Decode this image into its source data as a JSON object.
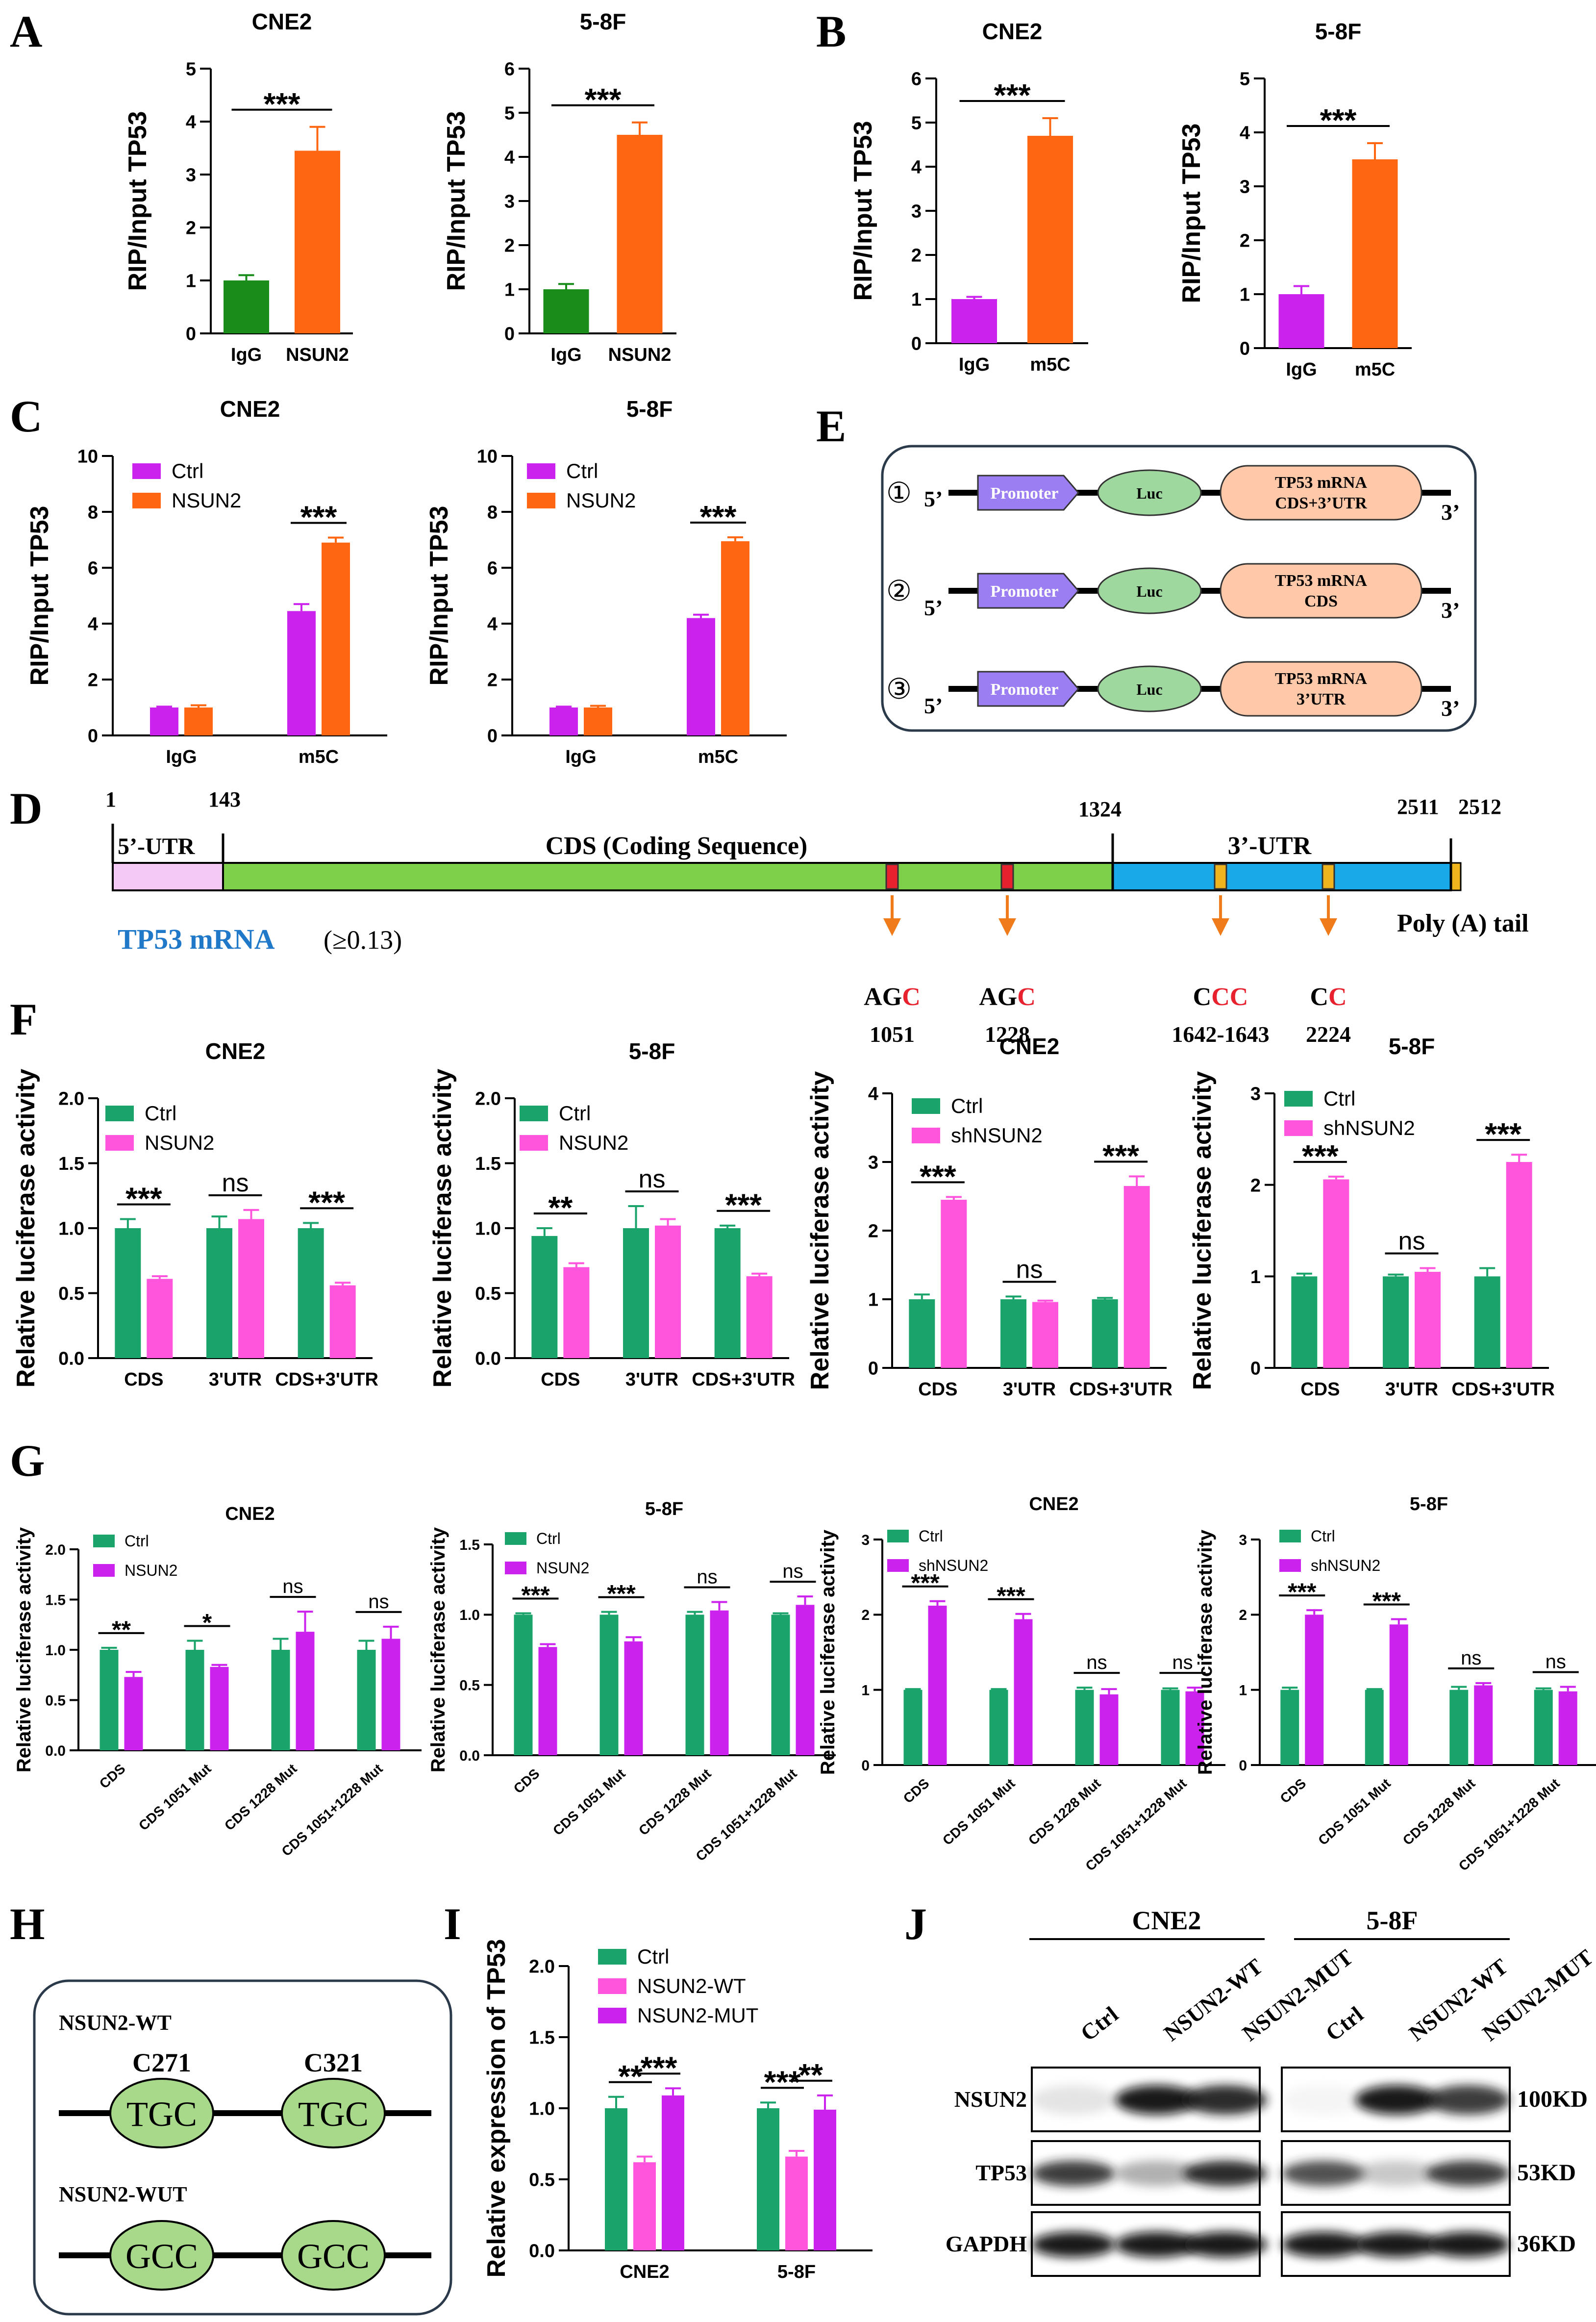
{
  "colors": {
    "green_dark": "#1a8c1a",
    "orange": "#ff6611",
    "magenta": "#cc22ee",
    "teal_green": "#1aa36a",
    "pink": "#ff55dd",
    "purple_box": "#9b7ef2",
    "luc_green": "#9fd89f",
    "peach": "#ffc8a8",
    "utr5": "#f5c9f5",
    "cds": "#7ed04a",
    "utr3": "#1aa9e8",
    "site": "#e8212e",
    "site_yellow": "#f0b41e",
    "arrow": "#f07b1a",
    "mrna_label": "#1f78c8",
    "domain_green": "#a8d98a"
  },
  "chart_data": [
    {
      "panel": "A",
      "title": "CNE2",
      "type": "bar",
      "ylabel": "RIP/Input TP53",
      "ylim": [
        0,
        5
      ],
      "yticks": [
        0,
        1,
        2,
        3,
        4,
        5
      ],
      "categories": [
        "IgG",
        "NSUN2"
      ],
      "values": [
        1.0,
        3.45
      ],
      "errors": [
        0.1,
        0.45
      ],
      "colors": [
        "green_dark",
        "orange"
      ],
      "sig": [
        {
          "from": 0,
          "to": 1,
          "label": "***"
        }
      ]
    },
    {
      "panel": "",
      "title": "5-8F",
      "type": "bar",
      "ylabel": "RIP/Input TP53",
      "ylim": [
        0,
        6
      ],
      "yticks": [
        0,
        1,
        2,
        3,
        4,
        5,
        6
      ],
      "categories": [
        "IgG",
        "NSUN2"
      ],
      "values": [
        1.0,
        4.5
      ],
      "errors": [
        0.12,
        0.28
      ],
      "colors": [
        "green_dark",
        "orange"
      ],
      "sig": [
        {
          "from": 0,
          "to": 1,
          "label": "***"
        }
      ]
    },
    {
      "panel": "B",
      "title": "CNE2",
      "type": "bar",
      "ylabel": "RIP/Input TP53",
      "ylim": [
        0,
        6
      ],
      "yticks": [
        0,
        1,
        2,
        3,
        4,
        5,
        6
      ],
      "categories": [
        "IgG",
        "m5C"
      ],
      "values": [
        1.0,
        4.7
      ],
      "errors": [
        0.05,
        0.4
      ],
      "colors": [
        "magenta",
        "orange"
      ],
      "sig": [
        {
          "from": 0,
          "to": 1,
          "label": "***"
        }
      ]
    },
    {
      "panel": "",
      "title": "5-8F",
      "type": "bar",
      "ylabel": "RIP/Input TP53",
      "ylim": [
        0,
        5
      ],
      "yticks": [
        0,
        1,
        2,
        3,
        4,
        5
      ],
      "categories": [
        "IgG",
        "m5C"
      ],
      "values": [
        1.0,
        3.5
      ],
      "errors": [
        0.15,
        0.3
      ],
      "colors": [
        "magenta",
        "orange"
      ],
      "sig": [
        {
          "from": 0,
          "to": 1,
          "label": "***"
        }
      ]
    },
    {
      "panel": "C",
      "title": "CNE2",
      "type": "grouped_bar",
      "ylabel": "RIP/Input TP53",
      "ylim": [
        0,
        10
      ],
      "yticks": [
        0,
        2,
        4,
        6,
        8,
        10
      ],
      "categories": [
        "IgG",
        "m5C"
      ],
      "series": [
        {
          "name": "Ctrl",
          "values": [
            1.0,
            4.45
          ],
          "errors": [
            0.03,
            0.25
          ],
          "color": "magenta"
        },
        {
          "name": "NSUN2",
          "values": [
            1.0,
            6.9
          ],
          "errors": [
            0.08,
            0.18
          ],
          "color": "orange"
        }
      ],
      "sig": [
        {
          "cat": 1,
          "label": "***"
        }
      ]
    },
    {
      "panel": "",
      "title": "5-8F",
      "type": "grouped_bar",
      "ylabel": "RIP/Input TP53",
      "ylim": [
        0,
        10
      ],
      "yticks": [
        0,
        2,
        4,
        6,
        8,
        10
      ],
      "categories": [
        "IgG",
        "m5C"
      ],
      "series": [
        {
          "name": "Ctrl",
          "values": [
            1.0,
            4.2
          ],
          "errors": [
            0.03,
            0.12
          ],
          "color": "magenta"
        },
        {
          "name": "NSUN2",
          "values": [
            1.0,
            6.95
          ],
          "errors": [
            0.06,
            0.14
          ],
          "color": "orange"
        }
      ],
      "sig": [
        {
          "cat": 1,
          "label": "***"
        }
      ]
    },
    {
      "panel": "F",
      "title": "CNE2",
      "type": "grouped_bar",
      "ylabel": "Relative luciferase activity",
      "ylim": [
        0,
        2.0
      ],
      "yticks": [
        0.0,
        0.5,
        1.0,
        1.5,
        2.0
      ],
      "decimals": 1,
      "categories": [
        "CDS",
        "3'UTR",
        "CDS+3'UTR"
      ],
      "series": [
        {
          "name": "Ctrl",
          "values": [
            1.0,
            1.0,
            1.0
          ],
          "errors": [
            0.07,
            0.09,
            0.04
          ],
          "color": "teal_green"
        },
        {
          "name": "NSUN2",
          "values": [
            0.61,
            1.07,
            0.56
          ],
          "errors": [
            0.02,
            0.07,
            0.02
          ],
          "color": "pink"
        }
      ],
      "sig": [
        {
          "cat": 0,
          "label": "***"
        },
        {
          "cat": 1,
          "label": "ns"
        },
        {
          "cat": 2,
          "label": "***"
        }
      ]
    },
    {
      "panel": "",
      "title": "5-8F",
      "type": "grouped_bar",
      "ylabel": "Relative luciferase activity",
      "ylim": [
        0,
        2.0
      ],
      "yticks": [
        0.0,
        0.5,
        1.0,
        1.5,
        2.0
      ],
      "decimals": 1,
      "categories": [
        "CDS",
        "3'UTR",
        "CDS+3'UTR"
      ],
      "series": [
        {
          "name": "Ctrl",
          "values": [
            0.94,
            1.0,
            1.0
          ],
          "errors": [
            0.06,
            0.17,
            0.02
          ],
          "color": "teal_green"
        },
        {
          "name": "NSUN2",
          "values": [
            0.7,
            1.02,
            0.63
          ],
          "errors": [
            0.03,
            0.05,
            0.02
          ],
          "color": "pink"
        }
      ],
      "sig": [
        {
          "cat": 0,
          "label": "**"
        },
        {
          "cat": 1,
          "label": "ns"
        },
        {
          "cat": 2,
          "label": "***"
        }
      ]
    },
    {
      "panel": "",
      "title": "CNE2",
      "type": "grouped_bar",
      "ylabel": "Relative luciferase activity",
      "ylim": [
        0,
        4
      ],
      "yticks": [
        0,
        1,
        2,
        3,
        4
      ],
      "categories": [
        "CDS",
        "3'UTR",
        "CDS+3'UTR"
      ],
      "series": [
        {
          "name": "Ctrl",
          "values": [
            1.0,
            1.0,
            1.0
          ],
          "errors": [
            0.07,
            0.04,
            0.02
          ],
          "color": "teal_green"
        },
        {
          "name": "shNSUN2",
          "values": [
            2.45,
            0.96,
            2.65
          ],
          "errors": [
            0.04,
            0.02,
            0.14
          ],
          "color": "pink"
        }
      ],
      "sig": [
        {
          "cat": 0,
          "label": "***"
        },
        {
          "cat": 1,
          "label": "ns"
        },
        {
          "cat": 2,
          "label": "***"
        }
      ]
    },
    {
      "panel": "",
      "title": "5-8F",
      "type": "grouped_bar",
      "ylabel": "Relative luciferase activity",
      "ylim": [
        0,
        3
      ],
      "yticks": [
        0,
        1,
        2,
        3
      ],
      "categories": [
        "CDS",
        "3'UTR",
        "CDS+3'UTR"
      ],
      "series": [
        {
          "name": "Ctrl",
          "values": [
            1.0,
            1.0,
            1.0
          ],
          "errors": [
            0.03,
            0.02,
            0.09
          ],
          "color": "teal_green"
        },
        {
          "name": "shNSUN2",
          "values": [
            2.06,
            1.05,
            2.25
          ],
          "errors": [
            0.03,
            0.04,
            0.08
          ],
          "color": "pink"
        }
      ],
      "sig": [
        {
          "cat": 0,
          "label": "***"
        },
        {
          "cat": 1,
          "label": "ns"
        },
        {
          "cat": 2,
          "label": "***"
        }
      ]
    },
    {
      "panel": "G",
      "title": "CNE2",
      "type": "grouped_bar",
      "rotate_x": true,
      "ylabel": "Relative luciferase activity",
      "ylim": [
        0,
        2.0
      ],
      "yticks": [
        0.0,
        0.5,
        1.0,
        1.5,
        2.0
      ],
      "decimals": 1,
      "categories": [
        "CDS",
        "CDS 1051 Mut",
        "CDS 1228 Mut",
        "CDS 1051+1228 Mut"
      ],
      "series": [
        {
          "name": "Ctrl",
          "values": [
            1.0,
            1.0,
            1.0,
            1.0
          ],
          "errors": [
            0.02,
            0.09,
            0.11,
            0.09
          ],
          "color": "teal_green"
        },
        {
          "name": "NSUN2",
          "values": [
            0.73,
            0.83,
            1.18,
            1.11
          ],
          "errors": [
            0.05,
            0.02,
            0.2,
            0.12
          ],
          "color": "magenta"
        }
      ],
      "sig": [
        {
          "cat": 0,
          "label": "**"
        },
        {
          "cat": 1,
          "label": "*"
        },
        {
          "cat": 2,
          "label": "ns"
        },
        {
          "cat": 3,
          "label": "ns"
        }
      ]
    },
    {
      "panel": "",
      "title": "5-8F",
      "type": "grouped_bar",
      "rotate_x": true,
      "ylabel": "Relative luciferase activity",
      "ylim": [
        0,
        1.5
      ],
      "yticks": [
        0.0,
        0.5,
        1.0,
        1.5
      ],
      "decimals": 1,
      "categories": [
        "CDS",
        "CDS 1051 Mut",
        "CDS 1228 Mut",
        "CDS 1051+1228 Mut"
      ],
      "series": [
        {
          "name": "Ctrl",
          "values": [
            1.0,
            1.0,
            1.0,
            1.0
          ],
          "errors": [
            0.01,
            0.02,
            0.02,
            0.01
          ],
          "color": "teal_green"
        },
        {
          "name": "NSUN2",
          "values": [
            0.77,
            0.81,
            1.03,
            1.07
          ],
          "errors": [
            0.02,
            0.03,
            0.06,
            0.06
          ],
          "color": "magenta"
        }
      ],
      "sig": [
        {
          "cat": 0,
          "label": "***"
        },
        {
          "cat": 1,
          "label": "***"
        },
        {
          "cat": 2,
          "label": "ns"
        },
        {
          "cat": 3,
          "label": "ns"
        }
      ]
    },
    {
      "panel": "",
      "title": "CNE2",
      "type": "grouped_bar",
      "rotate_x": true,
      "ylabel": "Relative luciferase activity",
      "ylim": [
        0,
        3
      ],
      "yticks": [
        0,
        1,
        2,
        3
      ],
      "categories": [
        "CDS",
        "CDS 1051 Mut",
        "CDS 1228 Mut",
        "CDS 1051+1228 Mut"
      ],
      "series": [
        {
          "name": "Ctrl",
          "values": [
            1.0,
            1.0,
            1.0,
            1.0
          ],
          "errors": [
            0.01,
            0.01,
            0.03,
            0.02
          ],
          "color": "teal_green"
        },
        {
          "name": "shNSUN2",
          "values": [
            2.12,
            1.94,
            0.94,
            0.98
          ],
          "errors": [
            0.06,
            0.07,
            0.07,
            0.05
          ],
          "color": "magenta"
        }
      ],
      "sig": [
        {
          "cat": 0,
          "label": "***"
        },
        {
          "cat": 1,
          "label": "***"
        },
        {
          "cat": 2,
          "label": "ns"
        },
        {
          "cat": 3,
          "label": "ns"
        }
      ]
    },
    {
      "panel": "",
      "title": "5-8F",
      "type": "grouped_bar",
      "rotate_x": true,
      "ylabel": "Relative luciferase activity",
      "ylim": [
        0,
        3
      ],
      "yticks": [
        0,
        1,
        2,
        3
      ],
      "categories": [
        "CDS",
        "CDS 1051 Mut",
        "CDS 1228 Mut",
        "CDS 1051+1228 Mut"
      ],
      "series": [
        {
          "name": "Ctrl",
          "values": [
            1.0,
            1.0,
            1.0,
            1.0
          ],
          "errors": [
            0.03,
            0.01,
            0.04,
            0.02
          ],
          "color": "teal_green"
        },
        {
          "name": "shNSUN2",
          "values": [
            2.0,
            1.87,
            1.06,
            0.98
          ],
          "errors": [
            0.06,
            0.07,
            0.03,
            0.06
          ],
          "color": "magenta"
        }
      ],
      "sig": [
        {
          "cat": 0,
          "label": "***"
        },
        {
          "cat": 1,
          "label": "***"
        },
        {
          "cat": 2,
          "label": "ns"
        },
        {
          "cat": 3,
          "label": "ns"
        }
      ]
    },
    {
      "panel": "I",
      "title": "",
      "type": "grouped_bar",
      "ylabel": "Relative expression of TP53",
      "ylim": [
        0,
        2.0
      ],
      "yticks": [
        0.0,
        0.5,
        1.0,
        1.5,
        2.0
      ],
      "decimals": 1,
      "categories": [
        "CNE2",
        "5-8F"
      ],
      "series": [
        {
          "name": "Ctrl",
          "values": [
            1.0,
            1.0
          ],
          "errors": [
            0.08,
            0.04
          ],
          "color": "teal_green"
        },
        {
          "name": "NSUN2-WT",
          "values": [
            0.62,
            0.66
          ],
          "errors": [
            0.04,
            0.04
          ],
          "color": "pink"
        },
        {
          "name": "NSUN2-MUT",
          "values": [
            1.09,
            0.99
          ],
          "errors": [
            0.05,
            0.1
          ],
          "color": "magenta"
        }
      ],
      "sig": [
        {
          "cat": 0,
          "pair": [
            0,
            1
          ],
          "label": "**"
        },
        {
          "cat": 0,
          "pair": [
            1,
            2
          ],
          "label": "***"
        },
        {
          "cat": 1,
          "pair": [
            0,
            1
          ],
          "label": "***"
        },
        {
          "cat": 1,
          "pair": [
            1,
            2
          ],
          "label": "**"
        }
      ]
    }
  ],
  "panel_E": {
    "label": "E",
    "constructs": [
      {
        "num": "①",
        "five": "5’",
        "promoter": "Promoter",
        "luc": "Luc",
        "insert_l1": "TP53 mRNA",
        "insert_l2": "CDS+3’UTR",
        "three": "3’"
      },
      {
        "num": "②",
        "five": "5’",
        "promoter": "Promoter",
        "luc": "Luc",
        "insert_l1": "TP53 mRNA",
        "insert_l2": "CDS",
        "three": "3’"
      },
      {
        "num": "③",
        "five": "5’",
        "promoter": "Promoter",
        "luc": "Luc",
        "insert_l1": "TP53 mRNA",
        "insert_l2": "3’UTR",
        "three": "3’"
      }
    ]
  },
  "panel_D": {
    "label": "D",
    "positions": [
      "1",
      "143",
      "1324",
      "2511",
      "2512"
    ],
    "utr5": "5’-UTR",
    "cds": "CDS (Coding Sequence)",
    "utr3": "3’-UTR",
    "polya": "Poly (A) tail",
    "mrna": "TP53 mRNA",
    "threshold": "(≥0.13)",
    "sites": [
      {
        "prefix": "AG",
        "red": "C",
        "suffix": "",
        "pos": "1051"
      },
      {
        "prefix": "AG",
        "red": "C",
        "suffix": "",
        "pos": "1228"
      },
      {
        "prefix": "C",
        "red": "CC",
        "suffix": "",
        "pos": "1642-1643"
      },
      {
        "prefix": "C",
        "red": "C",
        "suffix": "",
        "pos": "2224"
      }
    ]
  },
  "panel_H": {
    "label": "H",
    "wt_label": "NSUN2-WT",
    "sites": [
      "C271",
      "C321"
    ],
    "wt_codons": [
      "TGC",
      "TGC"
    ],
    "mut_label": "NSUN2-WUT",
    "mut_codons": [
      "GCC",
      "GCC"
    ]
  },
  "panel_J": {
    "label": "J",
    "groups": [
      "CNE2",
      "5-8F"
    ],
    "lanes": [
      "Ctrl",
      "NSUN2-WT",
      "NSUN2-MUT"
    ],
    "rows": [
      {
        "name": "NSUN2",
        "size": "100KD",
        "bands": [
          0.25,
          0.95,
          0.9,
          0.05,
          0.95,
          0.85
        ]
      },
      {
        "name": "TP53",
        "size": "53KD",
        "bands": [
          0.85,
          0.5,
          0.9,
          0.8,
          0.4,
          0.85
        ]
      },
      {
        "name": "GAPDH",
        "size": "36KD",
        "bands": [
          0.95,
          0.95,
          0.95,
          0.95,
          0.95,
          0.95
        ]
      }
    ]
  },
  "panel_labels": {
    "A": "A",
    "B": "B",
    "C": "C",
    "F": "F",
    "G": "G",
    "I": "I"
  }
}
